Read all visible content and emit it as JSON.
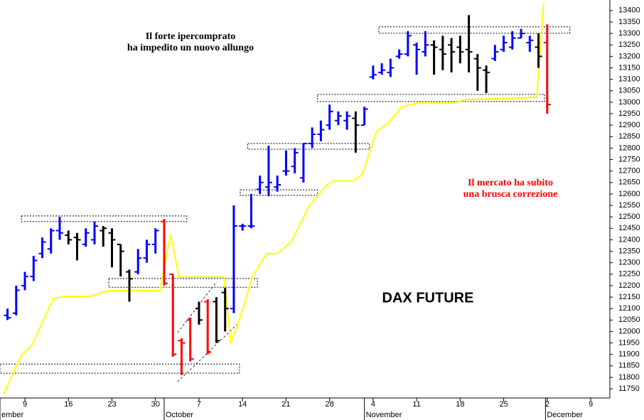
{
  "chart_data": {
    "type": "ohlc",
    "title": "DAX FUTURE",
    "xlim": [
      -2.86,
      67.2
    ],
    "ylim": [
      11710,
      13446
    ],
    "yticks": [
      11750,
      11800,
      11850,
      11900,
      11950,
      12000,
      12050,
      12100,
      12150,
      12200,
      12250,
      12300,
      12350,
      12400,
      12450,
      12500,
      12550,
      12600,
      12650,
      12700,
      12750,
      12800,
      12850,
      12900,
      12950,
      13000,
      13050,
      13100,
      13150,
      13200,
      13250,
      13300,
      13350,
      13400
    ],
    "xticks": [
      {
        "value": 0,
        "label": "9"
      },
      {
        "value": 5,
        "label": "16"
      },
      {
        "value": 10,
        "label": "23"
      },
      {
        "value": 15,
        "label": "30"
      },
      {
        "value": 20,
        "label": "7"
      },
      {
        "value": 25,
        "label": "14"
      },
      {
        "value": 30,
        "label": "21"
      },
      {
        "value": 35,
        "label": "28"
      },
      {
        "value": 40,
        "label": "4"
      },
      {
        "value": 45,
        "label": "11"
      },
      {
        "value": 50,
        "label": "18"
      },
      {
        "value": 55,
        "label": "25"
      },
      {
        "value": 60,
        "label": "2"
      },
      {
        "value": 65,
        "label": "9"
      }
    ],
    "month_labels": [
      {
        "value": -2.86,
        "label": "ember"
      },
      {
        "value": 16,
        "label": "October"
      },
      {
        "value": 39,
        "label": "November"
      },
      {
        "value": 59.8,
        "label": "December"
      }
    ],
    "x": [
      -2,
      -1,
      0,
      1,
      2,
      3,
      4,
      5,
      6,
      7,
      8,
      9,
      10,
      11,
      12,
      13,
      14,
      15,
      16,
      17,
      18,
      19,
      20,
      21,
      22,
      23,
      24,
      25,
      26,
      27,
      28,
      29,
      30,
      31,
      32,
      33,
      34,
      35,
      36,
      37,
      38,
      39,
      40,
      41,
      42,
      43,
      44,
      45,
      46,
      47,
      48,
      49,
      50,
      51,
      52,
      53,
      54,
      55,
      56,
      57,
      58,
      59,
      60
    ],
    "open": [
      12070,
      12080,
      12200,
      12240,
      12340,
      12360,
      12440,
      12420,
      12410,
      12380,
      12400,
      12440,
      12430,
      12380,
      12260,
      12260,
      12320,
      12380,
      12480,
      12250,
      11960,
      12050,
      12100,
      12130,
      12130,
      12170,
      12100,
      12460,
      12460,
      12620,
      12630,
      12630,
      12700,
      12720,
      12670,
      12820,
      12860,
      12900,
      12920,
      12920,
      12930,
      12900,
      13110,
      13130,
      13130,
      13200,
      13210,
      13250,
      13220,
      13250,
      13230,
      13250,
      13240,
      13230,
      13190,
      13140,
      13190,
      13230,
      13240,
      13280,
      13260,
      13240,
      13260
    ],
    "high": [
      12100,
      12200,
      12260,
      12330,
      12410,
      12450,
      12500,
      12440,
      12430,
      12450,
      12480,
      12460,
      12450,
      12380,
      12270,
      12360,
      12400,
      12450,
      12490,
      12250,
      11970,
      12060,
      12130,
      12140,
      12150,
      12190,
      12550,
      12470,
      12600,
      12680,
      12810,
      12680,
      12790,
      12800,
      12820,
      12890,
      12920,
      12990,
      12960,
      12960,
      12960,
      12980,
      13160,
      13170,
      13190,
      13230,
      13310,
      13260,
      13310,
      13270,
      13290,
      13280,
      13290,
      13380,
      13210,
      13160,
      13250,
      13290,
      13310,
      13320,
      13290,
      13300,
      13340
    ],
    "low": [
      12050,
      12070,
      12180,
      12220,
      12320,
      12340,
      12400,
      12380,
      12310,
      12370,
      12380,
      12370,
      12280,
      12240,
      12130,
      12250,
      12300,
      12340,
      12200,
      11890,
      11810,
      11870,
      12030,
      11900,
      11950,
      12000,
      12080,
      12440,
      12450,
      12600,
      12590,
      12610,
      12680,
      12690,
      12650,
      12800,
      12830,
      12880,
      12900,
      12880,
      12780,
      12900,
      13100,
      13120,
      13110,
      13190,
      13200,
      13120,
      13200,
      13120,
      13140,
      13130,
      13170,
      13130,
      13050,
      13040,
      13180,
      13220,
      13230,
      13280,
      13220,
      13150,
      12950
    ],
    "close": [
      12060,
      12180,
      12240,
      12310,
      12390,
      12440,
      12430,
      12400,
      12400,
      12430,
      12460,
      12450,
      12400,
      12350,
      12230,
      12320,
      12380,
      12440,
      12210,
      11900,
      11950,
      11880,
      12050,
      11910,
      11960,
      12100,
      12460,
      12460,
      12460,
      12650,
      12650,
      12640,
      12700,
      12780,
      12820,
      12860,
      12880,
      12960,
      12940,
      12940,
      12900,
      12970,
      13120,
      13140,
      13150,
      13210,
      13290,
      13230,
      13250,
      13240,
      13210,
      13220,
      13220,
      13220,
      13150,
      13130,
      13220,
      13260,
      13280,
      13300,
      13270,
      13200,
      12990
    ],
    "colors": [
      "#0000ff",
      "#0000ff",
      "#0000ff",
      "#0000ff",
      "#0000ff",
      "#0000ff",
      "#0000ff",
      "#000000",
      "#000000",
      "#0000ff",
      "#0000ff",
      "#000000",
      "#000000",
      "#000000",
      "#000000",
      "#0000ff",
      "#0000ff",
      "#0000ff",
      "#ff0000",
      "#ff0000",
      "#ff0000",
      "#ff0000",
      "#000000",
      "#ff0000",
      "#000000",
      "#000000",
      "#0000ff",
      "#0000ff",
      "#0000ff",
      "#0000ff",
      "#0000ff",
      "#0000ff",
      "#0000ff",
      "#0000ff",
      "#0000ff",
      "#0000ff",
      "#0000ff",
      "#0000ff",
      "#0000ff",
      "#0000ff",
      "#000000",
      "#0000ff",
      "#0000ff",
      "#0000ff",
      "#0000ff",
      "#0000ff",
      "#0000ff",
      "#0000ff",
      "#0000ff",
      "#000000",
      "#000000",
      "#000000",
      "#000000",
      "#000000",
      "#000000",
      "#000000",
      "#0000ff",
      "#0000ff",
      "#0000ff",
      "#0000ff",
      "#0000ff",
      "#000000",
      "#ff0000"
    ],
    "line": {
      "color": "#ffff00",
      "x": [
        -2.45,
        -0.41,
        0.82,
        3.27,
        4.49,
        7.51,
        9.55,
        15.51,
        16.73,
        17.71,
        22.86,
        23.67,
        24.9,
        26.12,
        27.76,
        28.98,
        30.61,
        32.65,
        34.69,
        35.51,
        37.71,
        38.78,
        40.41,
        41.63,
        43.27,
        45.31,
        49.39,
        50.61,
        57.14,
        58.78,
        59.59
      ],
      "values": [
        11725,
        11896,
        11942,
        12144,
        12153,
        12153,
        12178,
        12178,
        12423,
        12237,
        12237,
        11948,
        12082,
        12237,
        12339,
        12339,
        12392,
        12547,
        12640,
        12656,
        12656,
        12687,
        12873,
        12904,
        12981,
        12997,
        12997,
        13012,
        13018,
        13022,
        13431
      ]
    },
    "boxes": [
      {
        "x": [
          -0.41,
          18.6
        ],
        "y": [
          12479,
          12504
        ]
      },
      {
        "x": [
          9.63,
          26.7
        ],
        "y": [
          12193,
          12231
        ]
      },
      {
        "x": [
          -2.86,
          24.65
        ],
        "y": [
          11818,
          11858
        ]
      },
      {
        "x": [
          24.73,
          33.6
        ],
        "y": [
          12594,
          12618
        ]
      },
      {
        "x": [
          25.6,
          39.6
        ],
        "y": [
          12795,
          12820
        ]
      },
      {
        "x": [
          33.6,
          59.7
        ],
        "y": [
          13003,
          13034
        ]
      },
      {
        "x": [
          40.65,
          62.6
        ],
        "y": [
          13301,
          13329
        ]
      }
    ],
    "channels": [
      {
        "x": [
          17.55,
          24.49
        ],
        "y": [
          11781,
          12035
        ]
      },
      {
        "x": [
          17.55,
          22.04
        ],
        "y": [
          11995,
          12218
        ]
      }
    ],
    "annotations": [
      {
        "lines": [
          "Il forte ipercomprato",
          "ha impedito un nuovo allungo"
        ],
        "color": "#000000"
      },
      {
        "lines": [
          "Il mercato ha subito",
          "una brusca correzione"
        ],
        "color": "#ff0000"
      }
    ]
  }
}
